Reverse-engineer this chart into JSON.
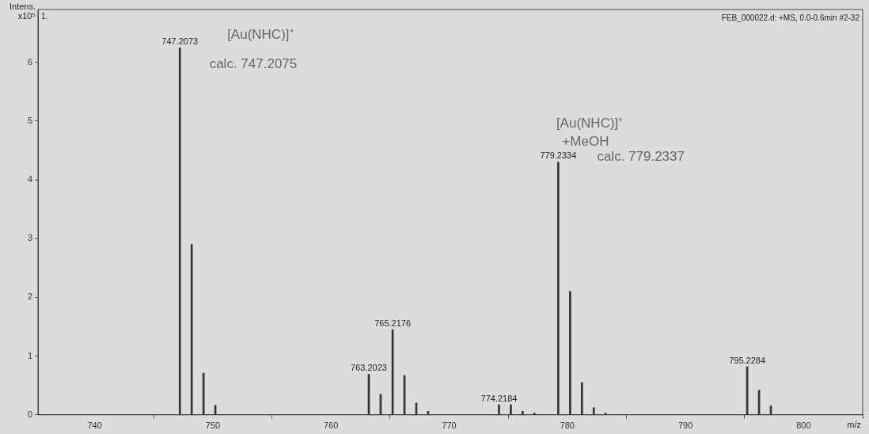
{
  "chart_data": {
    "type": "bar",
    "ylabel": "Intens.\nx10⁵",
    "xlabel": "m/z",
    "x": [
      747.2073,
      748.21,
      749.21,
      750.21,
      763.2023,
      764.2,
      765.2176,
      766.22,
      767.22,
      768.22,
      774.2184,
      775.22,
      776.22,
      777.22,
      779.2334,
      780.24,
      781.24,
      782.24,
      783.24,
      795.2284,
      796.23,
      797.23
    ],
    "values": [
      6.25,
      2.9,
      0.71,
      0.16,
      0.69,
      0.35,
      1.45,
      0.67,
      0.2,
      0.06,
      0.17,
      0.17,
      0.06,
      0.03,
      4.3,
      2.1,
      0.55,
      0.12,
      0.03,
      0.82,
      0.42,
      0.15
    ],
    "color": "#333333",
    "xlim": [
      735.2,
      805
    ],
    "xticks": [
      740,
      750,
      760,
      770,
      780,
      790,
      800
    ],
    "ylim": [
      0,
      6.9
    ],
    "yticks": [
      0,
      1,
      2,
      3,
      4,
      5,
      6
    ],
    "grid": false,
    "annotations": [
      "1.",
      "FEB_000022.d: +MS, 0.0-0.6min #2-32",
      {
        "text": "747.2073",
        "x": 747.2073,
        "y": 6.25
      },
      {
        "text": "765.2176",
        "x": 765.2176,
        "y": 1.45
      },
      {
        "text": "763.2023",
        "x": 763.2023,
        "y": 0.69
      },
      {
        "text": "774.2184",
        "x": 774.2184,
        "y": 0.17
      },
      {
        "text": "779.2334",
        "x": 779.2334,
        "y": 4.3
      },
      {
        "text": "795.2284",
        "x": 795.2284,
        "y": 0.82
      },
      "[Au(NHC)]⁺",
      "calc. 747.2075",
      "[Au(NHC)]⁺",
      "+MeOH",
      "calc. 779.2337"
    ]
  }
}
